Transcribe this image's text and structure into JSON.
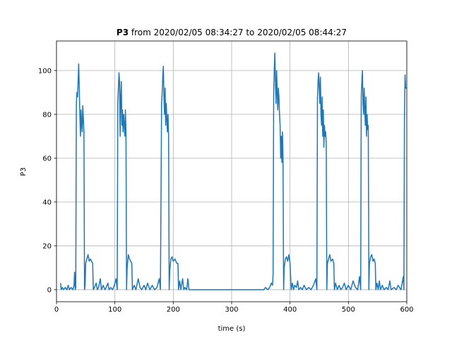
{
  "chart_data": {
    "type": "line",
    "title_bold": "P3",
    "title": "from 2020/02/05 08:34:27 to 2020/02/05 08:44:27",
    "xlabel": "time (s)",
    "ylabel": "P3",
    "xlim": [
      0,
      600
    ],
    "ylim": [
      -5.5,
      113.5
    ],
    "xticks": [
      0,
      100,
      200,
      300,
      400,
      500,
      600
    ],
    "yticks": [
      0,
      20,
      40,
      60,
      80,
      100
    ],
    "grid": true,
    "series": [
      {
        "color": "#1f77b4",
        "x": [
          7,
          8,
          10,
          12,
          15,
          18,
          20,
          22,
          25,
          28,
          30,
          31,
          32,
          33,
          34,
          35,
          36,
          37,
          38,
          39,
          40,
          41,
          42,
          43,
          44,
          45,
          46,
          47,
          48,
          49,
          50,
          52,
          54,
          56,
          58,
          60,
          62,
          63,
          65,
          68,
          70,
          72,
          75,
          77,
          80,
          83,
          85,
          88,
          90,
          93,
          96,
          99,
          102,
          104,
          105,
          106,
          107,
          108,
          109,
          110,
          111,
          112,
          113,
          114,
          115,
          116,
          117,
          118,
          119,
          120,
          121,
          123,
          125,
          127,
          129,
          130,
          133,
          136,
          140,
          143,
          146,
          150,
          153,
          156,
          160,
          164,
          168,
          172,
          176,
          178,
          180,
          181,
          182,
          183,
          184,
          185,
          186,
          187,
          188,
          189,
          190,
          191,
          192,
          193,
          194,
          196,
          198,
          200,
          203,
          206,
          208,
          209,
          211,
          213,
          216,
          218,
          220,
          223,
          225,
          227,
          230,
          260,
          300,
          340,
          355,
          358,
          362,
          365,
          368,
          370,
          371,
          372,
          373,
          374,
          375,
          376,
          377,
          378,
          379,
          380,
          381,
          382,
          383,
          384,
          385,
          386,
          387,
          388,
          389,
          390,
          392,
          394,
          396,
          398,
          400,
          402,
          404,
          406,
          408,
          411,
          413,
          415,
          418,
          421,
          424,
          428,
          432,
          436,
          440,
          444,
          446,
          447,
          448,
          449,
          450,
          451,
          452,
          453,
          454,
          455,
          456,
          457,
          458,
          459,
          460,
          461,
          462,
          463,
          464,
          466,
          468,
          470,
          473,
          475,
          476,
          478,
          481,
          484,
          487,
          490,
          493,
          496,
          500,
          504,
          508,
          512,
          516,
          519,
          521,
          522,
          523,
          524,
          525,
          526,
          527,
          528,
          529,
          530,
          531,
          532,
          533,
          534,
          535,
          536,
          538,
          540,
          542,
          544,
          546,
          547,
          549,
          551,
          553,
          555,
          558,
          561,
          565,
          568,
          571,
          573,
          578,
          582,
          585,
          590,
          594,
          595,
          596,
          597,
          598,
          600
        ],
        "values": [
          3,
          0,
          1,
          0,
          1,
          0,
          2,
          0,
          1,
          0,
          2,
          8,
          0,
          1,
          85,
          90,
          88,
          95,
          103,
          92,
          80,
          70,
          82,
          75,
          72,
          84,
          78,
          72,
          0,
          2,
          12,
          14,
          16,
          13,
          14,
          13,
          12,
          0,
          1,
          3,
          0,
          1,
          5,
          0,
          2,
          0,
          1,
          3,
          0,
          1,
          0,
          2,
          5,
          0,
          85,
          92,
          99,
          95,
          70,
          88,
          95,
          75,
          82,
          72,
          80,
          75,
          70,
          82,
          72,
          0,
          10,
          16,
          14,
          13,
          12,
          0,
          2,
          0,
          5,
          1,
          0,
          2,
          0,
          3,
          0,
          2,
          0,
          1,
          5,
          0,
          85,
          90,
          97,
          102,
          88,
          80,
          92,
          75,
          85,
          78,
          72,
          80,
          70,
          0,
          9,
          14,
          15,
          13,
          14,
          12,
          12,
          0,
          4,
          0,
          5,
          0,
          1,
          0,
          5,
          0,
          0,
          0,
          0,
          0,
          0,
          1,
          0,
          1,
          3,
          2,
          7,
          90,
          100,
          108,
          95,
          85,
          100,
          90,
          82,
          92,
          88,
          80,
          75,
          60,
          70,
          58,
          72,
          60,
          0,
          10,
          14,
          15,
          13,
          16,
          12,
          0,
          3,
          0,
          2,
          1,
          4,
          0,
          1,
          0,
          2,
          0,
          1,
          0,
          2,
          5,
          0,
          88,
          95,
          99,
          92,
          85,
          97,
          80,
          75,
          88,
          70,
          82,
          65,
          75,
          70,
          72,
          67,
          0,
          12,
          14,
          16,
          13,
          14,
          12,
          0,
          3,
          0,
          2,
          0,
          1,
          3,
          0,
          2,
          0,
          4,
          1,
          0,
          6,
          0,
          88,
          95,
          100,
          85,
          80,
          92,
          82,
          75,
          88,
          70,
          80,
          73,
          75,
          0,
          12,
          15,
          16,
          13,
          14,
          12,
          0,
          3,
          0,
          4,
          0,
          2,
          0,
          1,
          0,
          4,
          0,
          1,
          0,
          2,
          0,
          6,
          0,
          80,
          98,
          92,
          92
        ]
      }
    ]
  }
}
